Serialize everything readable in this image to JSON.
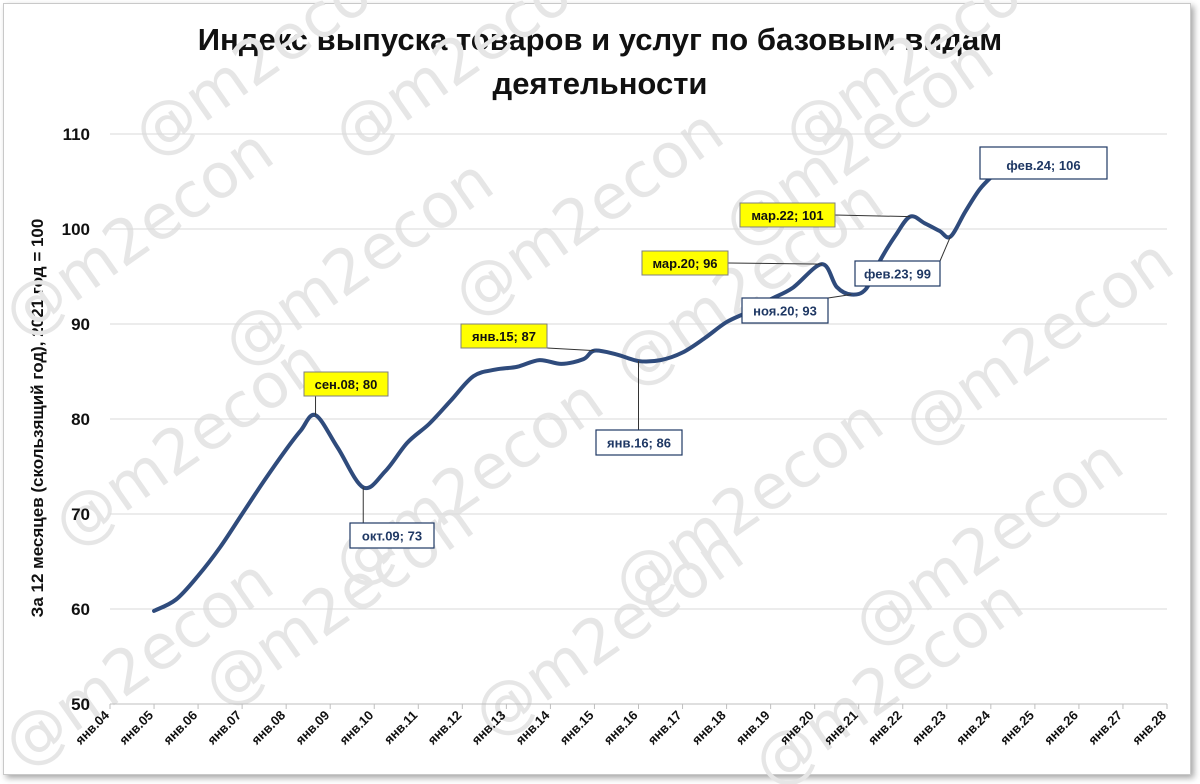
{
  "watermark": "@m2econ",
  "chart_data": {
    "type": "line",
    "title_lines": [
      "Индекс выпуска товаров и услуг по базовым видам",
      "деятельности"
    ],
    "xlabel": "",
    "ylabel": "За 12 месяцев (скользящий год), 2021 год = 100",
    "ylim": [
      50,
      110
    ],
    "yticks": [
      50,
      60,
      70,
      80,
      90,
      100,
      110
    ],
    "xlim": [
      "2004-01",
      "2028-01"
    ],
    "xticks": [
      "янв.04",
      "янв.05",
      "янв.06",
      "янв.07",
      "янв.08",
      "янв.09",
      "янв.10",
      "янв.11",
      "янв.12",
      "янв.13",
      "янв.14",
      "янв.15",
      "янв.16",
      "янв.17",
      "янв.18",
      "янв.19",
      "янв.20",
      "янв.21",
      "янв.22",
      "янв.23",
      "янв.24",
      "янв.25",
      "янв.26",
      "янв.27",
      "янв.28"
    ],
    "grid": "horizontal",
    "legend": "none",
    "line_color": "#2f4b7c",
    "series": [
      {
        "x": [
          "2005-01",
          "2005-07",
          "2006-01",
          "2006-07",
          "2007-01",
          "2007-07",
          "2008-01",
          "2008-05",
          "2008-09",
          "2009-03",
          "2009-10",
          "2010-04",
          "2010-10",
          "2011-04",
          "2011-10",
          "2012-04",
          "2012-10",
          "2013-04",
          "2013-10",
          "2014-04",
          "2014-10",
          "2015-01",
          "2015-07",
          "2016-01",
          "2016-07",
          "2017-01",
          "2017-07",
          "2018-01",
          "2018-07",
          "2019-01",
          "2019-07",
          "2020-03",
          "2020-07",
          "2020-11",
          "2021-03",
          "2021-07",
          "2021-11",
          "2022-03",
          "2022-07",
          "2022-11",
          "2023-02",
          "2023-06",
          "2023-10",
          "2024-02"
        ],
        "values": [
          59.8,
          61.0,
          63.5,
          66.5,
          70.0,
          73.5,
          76.8,
          78.8,
          80.4,
          77.0,
          72.8,
          74.5,
          77.5,
          79.5,
          82.0,
          84.5,
          85.2,
          85.5,
          86.2,
          85.8,
          86.3,
          87.2,
          86.8,
          86.1,
          86.2,
          87.0,
          88.5,
          90.2,
          91.3,
          92.6,
          93.8,
          96.3,
          93.9,
          93.1,
          93.7,
          96.8,
          99.3,
          101.3,
          100.6,
          99.8,
          99.2,
          101.8,
          104.2,
          105.8
        ]
      }
    ],
    "annotations": [
      {
        "date": "2008-09",
        "value": 80.4,
        "text": "сен.08; 80",
        "style": "yellow"
      },
      {
        "date": "2009-10",
        "value": 72.8,
        "text": "окт.09; 73",
        "style": "white"
      },
      {
        "date": "2015-01",
        "value": 87.2,
        "text": "янв.15; 87",
        "style": "yellow"
      },
      {
        "date": "2016-01",
        "value": 86.1,
        "text": "янв.16; 86",
        "style": "white"
      },
      {
        "date": "2020-03",
        "value": 96.3,
        "text": "мар.20; 96",
        "style": "yellow"
      },
      {
        "date": "2020-11",
        "value": 93.1,
        "text": "ноя.20; 93",
        "style": "white"
      },
      {
        "date": "2022-03",
        "value": 101.3,
        "text": "мар.22; 101",
        "style": "yellow"
      },
      {
        "date": "2023-02",
        "value": 99.2,
        "text": "фев.23; 99",
        "style": "white"
      },
      {
        "date": "2024-02",
        "value": 105.8,
        "text": "фев.24; 106",
        "style": "white-large"
      }
    ]
  }
}
